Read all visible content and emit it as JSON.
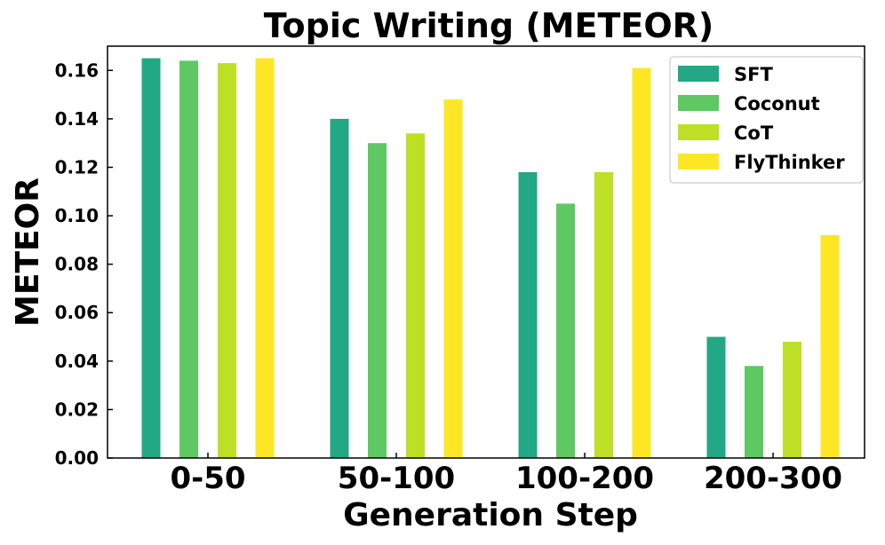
{
  "chart_data": {
    "type": "bar",
    "title": "Topic Writing (METEOR)",
    "xlabel": "Generation Step",
    "ylabel": "METEOR",
    "categories": [
      "0-50",
      "50-100",
      "100-200",
      "200-300"
    ],
    "ylim": [
      0,
      0.17
    ],
    "yticks": [
      "0.00",
      "0.02",
      "0.04",
      "0.06",
      "0.08",
      "0.10",
      "0.12",
      "0.14",
      "0.16"
    ],
    "grid": false,
    "legend_position": "top-right",
    "series": [
      {
        "name": "SFT",
        "color": "#22a884",
        "values": [
          0.165,
          0.14,
          0.118,
          0.05
        ]
      },
      {
        "name": "Coconut",
        "color": "#5ec962",
        "values": [
          0.164,
          0.13,
          0.105,
          0.038
        ]
      },
      {
        "name": "CoT",
        "color": "#bddf26",
        "values": [
          0.163,
          0.134,
          0.118,
          0.048
        ]
      },
      {
        "name": "FlyThinker",
        "color": "#fde725",
        "values": [
          0.165,
          0.148,
          0.161,
          0.092
        ]
      }
    ]
  }
}
